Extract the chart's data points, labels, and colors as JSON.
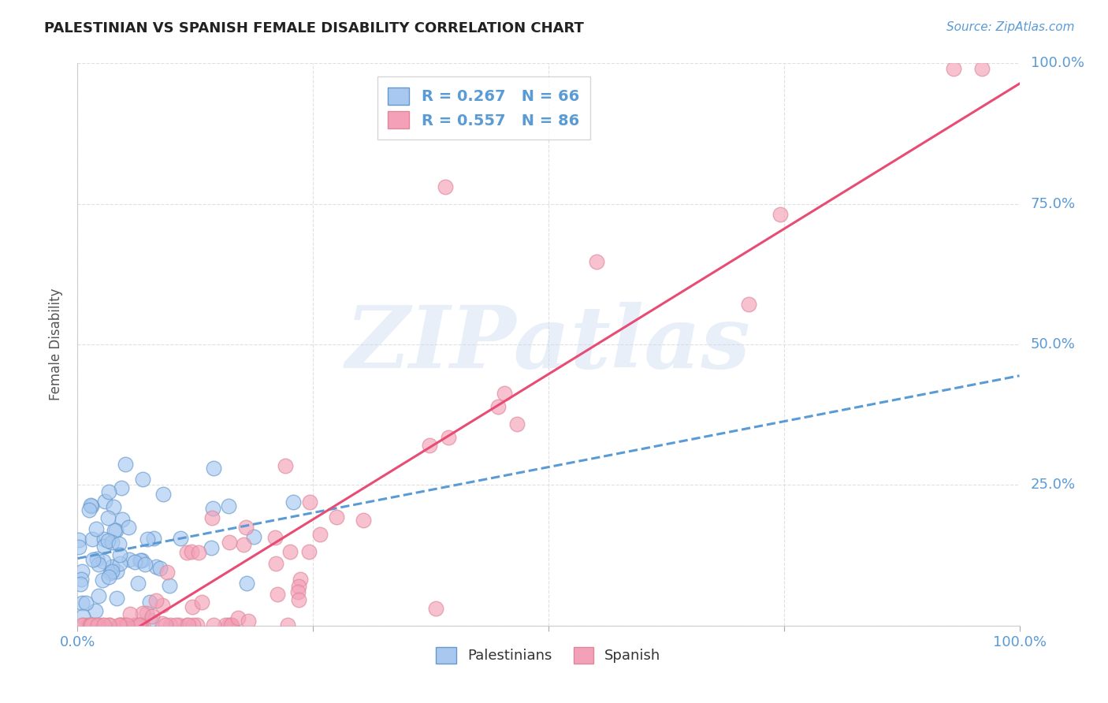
{
  "title": "PALESTINIAN VS SPANISH FEMALE DISABILITY CORRELATION CHART",
  "source": "Source: ZipAtlas.com",
  "ylabel": "Female Disability",
  "xlim": [
    0,
    1
  ],
  "ylim": [
    0,
    1
  ],
  "x_ticks": [
    0,
    0.25,
    0.5,
    0.75,
    1.0
  ],
  "y_ticks": [
    0,
    0.25,
    0.5,
    0.75,
    1.0
  ],
  "x_tick_labels": [
    "0.0%",
    "",
    "",
    "",
    "100.0%"
  ],
  "y_tick_labels_right": [
    "",
    "25.0%",
    "50.0%",
    "75.0%",
    "100.0%"
  ],
  "palestinians_R": 0.267,
  "palestinians_N": 66,
  "spanish_R": 0.557,
  "spanish_N": 86,
  "pal_color": "#A8C8F0",
  "spa_color": "#F4A0B8",
  "pal_edge_color": "#6699CC",
  "spa_edge_color": "#DD8899",
  "pal_line_color": "#5B9BD5",
  "spa_line_color": "#E84C75",
  "background_color": "#FFFFFF",
  "grid_color": "#DDDDDD",
  "watermark_text": "ZIPatlas",
  "tick_label_color": "#5B9BD5",
  "title_color": "#222222",
  "ylabel_color": "#555555"
}
